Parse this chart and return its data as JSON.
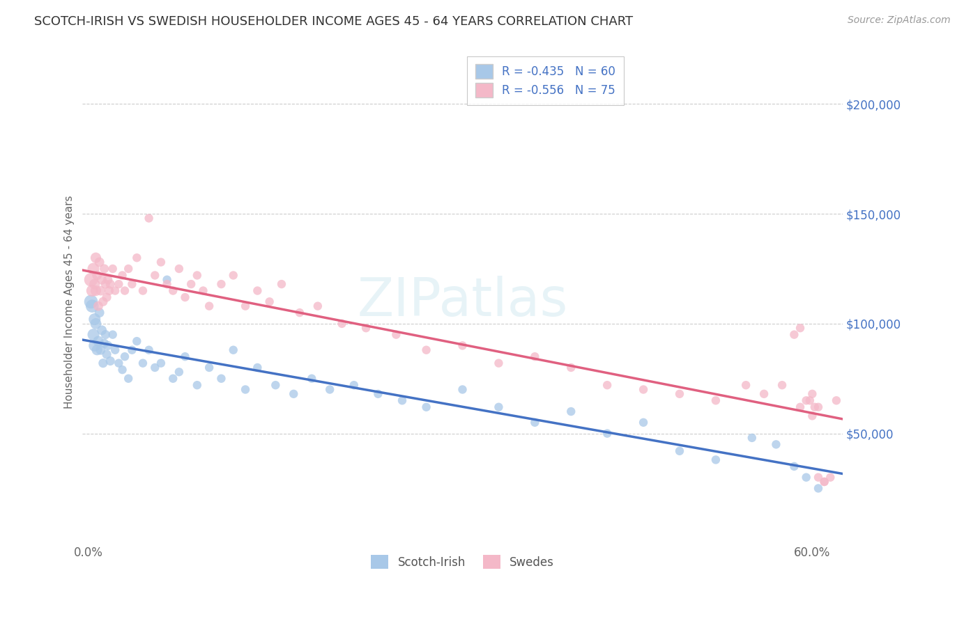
{
  "title": "SCOTCH-IRISH VS SWEDISH HOUSEHOLDER INCOME AGES 45 - 64 YEARS CORRELATION CHART",
  "source": "Source: ZipAtlas.com",
  "ylabel": "Householder Income Ages 45 - 64 years",
  "ytick_labels": [
    "$50,000",
    "$100,000",
    "$150,000",
    "$200,000"
  ],
  "ytick_values": [
    50000,
    100000,
    150000,
    200000
  ],
  "ylim": [
    0,
    220000
  ],
  "xlim": [
    -0.005,
    0.625
  ],
  "legend_entries": [
    {
      "label_r": "R = -0.435",
      "label_n": "N = 60",
      "color": "#a8c8e8"
    },
    {
      "label_r": "R = -0.556",
      "label_n": "N = 75",
      "color": "#f4b8c8"
    }
  ],
  "line_blue": "#4472c4",
  "line_pink": "#e06080",
  "scatter_blue": "#a8c8e8",
  "scatter_pink": "#f4b8c8",
  "bg_color": "#ffffff",
  "grid_color": "#cccccc",
  "title_color": "#333333",
  "axis_label_color": "#666666",
  "tick_color_right": "#4472c4",
  "watermark": "ZIPatlas",
  "scotch_irish_x": [
    0.002,
    0.003,
    0.004,
    0.005,
    0.005,
    0.006,
    0.007,
    0.008,
    0.009,
    0.01,
    0.011,
    0.012,
    0.013,
    0.014,
    0.015,
    0.016,
    0.018,
    0.02,
    0.022,
    0.025,
    0.028,
    0.03,
    0.033,
    0.036,
    0.04,
    0.045,
    0.05,
    0.055,
    0.06,
    0.065,
    0.07,
    0.075,
    0.08,
    0.09,
    0.1,
    0.11,
    0.12,
    0.13,
    0.14,
    0.155,
    0.17,
    0.185,
    0.2,
    0.22,
    0.24,
    0.26,
    0.28,
    0.31,
    0.34,
    0.37,
    0.4,
    0.43,
    0.46,
    0.49,
    0.52,
    0.55,
    0.57,
    0.585,
    0.595,
    0.605
  ],
  "scotch_irish_y": [
    110000,
    108000,
    95000,
    102000,
    90000,
    100000,
    88000,
    92000,
    105000,
    88000,
    97000,
    82000,
    91000,
    95000,
    86000,
    90000,
    83000,
    95000,
    88000,
    82000,
    79000,
    85000,
    75000,
    88000,
    92000,
    82000,
    88000,
    80000,
    82000,
    120000,
    75000,
    78000,
    85000,
    72000,
    80000,
    75000,
    88000,
    70000,
    80000,
    72000,
    68000,
    75000,
    70000,
    72000,
    68000,
    65000,
    62000,
    70000,
    62000,
    55000,
    60000,
    50000,
    55000,
    42000,
    38000,
    48000,
    45000,
    35000,
    30000,
    25000
  ],
  "scotch_irish_s": [
    200,
    180,
    150,
    150,
    150,
    130,
    120,
    120,
    100,
    100,
    100,
    90,
    90,
    90,
    90,
    90,
    90,
    80,
    80,
    80,
    80,
    80,
    80,
    80,
    80,
    80,
    80,
    80,
    80,
    80,
    80,
    80,
    80,
    80,
    80,
    80,
    80,
    80,
    80,
    80,
    80,
    80,
    80,
    80,
    80,
    80,
    80,
    80,
    80,
    80,
    80,
    80,
    80,
    80,
    80,
    80,
    80,
    80,
    80,
    80
  ],
  "swedes_x": [
    0.002,
    0.003,
    0.004,
    0.005,
    0.006,
    0.006,
    0.007,
    0.008,
    0.009,
    0.01,
    0.011,
    0.012,
    0.013,
    0.014,
    0.015,
    0.016,
    0.017,
    0.018,
    0.02,
    0.022,
    0.025,
    0.028,
    0.03,
    0.033,
    0.036,
    0.04,
    0.045,
    0.05,
    0.055,
    0.06,
    0.065,
    0.07,
    0.075,
    0.08,
    0.085,
    0.09,
    0.095,
    0.1,
    0.11,
    0.12,
    0.13,
    0.14,
    0.15,
    0.16,
    0.175,
    0.19,
    0.21,
    0.23,
    0.255,
    0.28,
    0.31,
    0.34,
    0.37,
    0.4,
    0.43,
    0.46,
    0.49,
    0.52,
    0.545,
    0.56,
    0.575,
    0.585,
    0.59,
    0.595,
    0.6,
    0.605,
    0.61,
    0.615,
    0.62,
    0.59,
    0.6,
    0.605,
    0.61,
    0.598,
    0.602
  ],
  "swedes_y": [
    120000,
    115000,
    125000,
    118000,
    115000,
    130000,
    122000,
    108000,
    128000,
    115000,
    120000,
    110000,
    125000,
    118000,
    112000,
    120000,
    115000,
    118000,
    125000,
    115000,
    118000,
    122000,
    115000,
    125000,
    118000,
    130000,
    115000,
    148000,
    122000,
    128000,
    118000,
    115000,
    125000,
    112000,
    118000,
    122000,
    115000,
    108000,
    118000,
    122000,
    108000,
    115000,
    110000,
    118000,
    105000,
    108000,
    100000,
    98000,
    95000,
    88000,
    90000,
    82000,
    85000,
    80000,
    72000,
    70000,
    68000,
    65000,
    72000,
    68000,
    72000,
    95000,
    98000,
    65000,
    68000,
    62000,
    28000,
    30000,
    65000,
    62000,
    58000,
    30000,
    28000,
    65000,
    62000
  ],
  "swedes_s": [
    200,
    150,
    150,
    120,
    120,
    120,
    100,
    100,
    100,
    100,
    100,
    90,
    90,
    90,
    90,
    90,
    90,
    90,
    80,
    80,
    80,
    80,
    80,
    80,
    80,
    80,
    80,
    80,
    80,
    80,
    80,
    80,
    80,
    80,
    80,
    80,
    80,
    80,
    80,
    80,
    80,
    80,
    80,
    80,
    80,
    80,
    80,
    80,
    80,
    80,
    80,
    80,
    80,
    80,
    80,
    80,
    80,
    80,
    80,
    80,
    80,
    80,
    80,
    80,
    80,
    80,
    80,
    80,
    80,
    80,
    80,
    80,
    80,
    80,
    80
  ]
}
